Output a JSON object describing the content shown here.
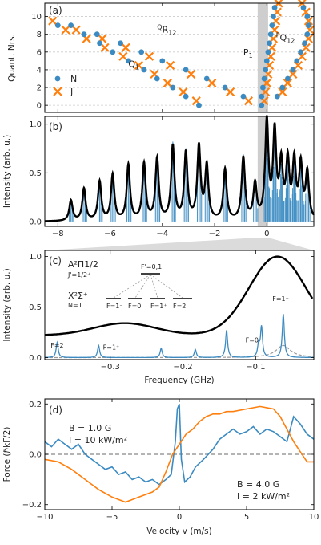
{
  "colors": {
    "blue": "#3b8bc2",
    "orange": "#ff7f0e",
    "black": "#000000",
    "gray": "#999999",
    "band": "#bdbdbd"
  },
  "chart_data": [
    {
      "panel": "(a)",
      "type": "scatter",
      "ylabel": "Quant. Nrs.",
      "xlim": [
        -8.5,
        1.8
      ],
      "ylim": [
        -0.8,
        11.5
      ],
      "yticks": [
        "0",
        "2",
        "4",
        "6",
        "8",
        "10"
      ],
      "legend_placement": "bottom-left",
      "series": [
        {
          "name": "N",
          "marker": "dot",
          "points": [
            [
              -8.0,
              9
            ],
            [
              -7.0,
              8
            ],
            [
              -6.4,
              7
            ],
            [
              -5.9,
              6
            ],
            [
              -5.3,
              5
            ],
            [
              -4.7,
              4
            ],
            [
              -4.2,
              3
            ],
            [
              -3.6,
              2
            ],
            [
              -3.1,
              1
            ],
            [
              -2.6,
              0
            ],
            [
              -7.5,
              9
            ],
            [
              -6.5,
              8
            ],
            [
              -5.6,
              7
            ],
            [
              -4.8,
              6
            ],
            [
              -4.0,
              5
            ],
            [
              -3.1,
              4
            ],
            [
              -2.3,
              3
            ],
            [
              -1.6,
              2
            ],
            [
              -0.9,
              1
            ],
            [
              -0.2,
              0
            ],
            [
              -0.2,
              1
            ],
            [
              -0.15,
              2
            ],
            [
              -0.1,
              3
            ],
            [
              -0.05,
              4
            ],
            [
              0.0,
              5
            ],
            [
              0.05,
              6
            ],
            [
              0.1,
              7
            ],
            [
              0.15,
              8
            ],
            [
              0.2,
              9
            ],
            [
              0.25,
              10
            ],
            [
              0.3,
              11
            ],
            [
              0.4,
              1
            ],
            [
              0.6,
              2
            ],
            [
              0.8,
              3
            ],
            [
              1.0,
              4
            ],
            [
              1.15,
              5
            ],
            [
              1.3,
              6
            ],
            [
              1.45,
              7
            ],
            [
              1.55,
              8
            ],
            [
              1.6,
              9
            ],
            [
              1.55,
              10
            ],
            [
              1.4,
              11
            ]
          ]
        },
        {
          "name": "J",
          "marker": "cross",
          "points": [
            [
              -8.2,
              9.5
            ],
            [
              -7.7,
              8.5
            ],
            [
              -6.9,
              7.5
            ],
            [
              -6.2,
              6.5
            ],
            [
              -5.5,
              5.5
            ],
            [
              -4.9,
              4.5
            ],
            [
              -4.3,
              3.5
            ],
            [
              -3.8,
              2.5
            ],
            [
              -3.2,
              1.5
            ],
            [
              -2.7,
              0.5
            ],
            [
              -7.3,
              8.5
            ],
            [
              -6.3,
              7.5
            ],
            [
              -5.4,
              6.5
            ],
            [
              -4.5,
              5.5
            ],
            [
              -3.7,
              4.5
            ],
            [
              -2.9,
              3.5
            ],
            [
              -2.1,
              2.5
            ],
            [
              -1.4,
              1.5
            ],
            [
              -0.7,
              0.5
            ],
            [
              -0.1,
              0.5
            ],
            [
              -0.05,
              1.5
            ],
            [
              0.0,
              2.5
            ],
            [
              0.05,
              3.5
            ],
            [
              0.1,
              4.5
            ],
            [
              0.15,
              5.5
            ],
            [
              0.2,
              6.5
            ],
            [
              0.25,
              7.5
            ],
            [
              0.3,
              8.5
            ],
            [
              0.35,
              9.5
            ],
            [
              0.4,
              10.5
            ],
            [
              0.45,
              11.5
            ],
            [
              0.6,
              1.5
            ],
            [
              0.8,
              2.5
            ],
            [
              1.0,
              3.5
            ],
            [
              1.2,
              4.5
            ],
            [
              1.35,
              5.5
            ],
            [
              1.5,
              6.5
            ],
            [
              1.6,
              7.5
            ],
            [
              1.65,
              8.5
            ],
            [
              1.6,
              9.5
            ],
            [
              1.5,
              10.5
            ],
            [
              1.35,
              11.5
            ]
          ]
        }
      ],
      "branch_labels": [
        {
          "text": "^{Q}R_{12}",
          "main": "R",
          "sub": "12",
          "pre": "Q",
          "x": -4.2,
          "y": 8.2
        },
        {
          "text": "Q_1",
          "main": "Q",
          "sub": "1",
          "pre": "",
          "x": -5.3,
          "y": 4.3
        },
        {
          "text": "P_1",
          "main": "P",
          "sub": "1",
          "pre": "",
          "x": -0.9,
          "y": 5.6
        },
        {
          "text": "^{P}Q_{12}",
          "main": "Q",
          "sub": "12",
          "pre": "P",
          "x": 0.35,
          "y": 7.3
        }
      ]
    },
    {
      "panel": "(b)",
      "type": "line",
      "ylabel": "Intensity (arb. u.)",
      "xlim": [
        -8.5,
        1.8
      ],
      "ylim": [
        -0.05,
        1.08
      ],
      "xticks": [
        "−8",
        "−6",
        "−4",
        "−2",
        "0"
      ],
      "yticks": [
        "0.0",
        "0.5",
        "1.0"
      ],
      "highlight_band": [
        -0.35,
        0.05
      ],
      "peaks": [
        [
          -7.5,
          0.21
        ],
        [
          -7.0,
          0.33
        ],
        [
          -6.4,
          0.4
        ],
        [
          -5.9,
          0.47
        ],
        [
          -5.3,
          0.57
        ],
        [
          -4.7,
          0.58
        ],
        [
          -4.2,
          0.63
        ],
        [
          -3.6,
          0.76
        ],
        [
          -3.1,
          0.69
        ],
        [
          -2.6,
          0.75
        ],
        [
          -2.3,
          0.55
        ],
        [
          -1.6,
          0.52
        ],
        [
          -0.9,
          0.64
        ],
        [
          -0.45,
          0.36
        ],
        [
          0.0,
          1.0
        ],
        [
          0.3,
          0.88
        ],
        [
          0.55,
          0.55
        ],
        [
          0.8,
          0.58
        ],
        [
          1.05,
          0.58
        ],
        [
          1.3,
          0.55
        ],
        [
          1.55,
          0.48
        ]
      ]
    },
    {
      "panel": "(c)",
      "type": "line",
      "xlabel": "Frequency (GHz)",
      "ylabel": "Intensity (arb. u.)",
      "xlim": [
        -0.39,
        -0.02
      ],
      "ylim": [
        -0.02,
        1.06
      ],
      "xticks": [
        "−0.3",
        "−0.2",
        "−0.1"
      ],
      "yticks": [
        "0.0",
        "0.5",
        "1.0"
      ],
      "peaks": [
        [
          -0.373,
          0.15
        ],
        [
          -0.316,
          0.12
        ],
        [
          -0.23,
          0.09
        ],
        [
          -0.183,
          0.08
        ],
        [
          -0.14,
          0.27
        ],
        [
          -0.096,
          0.12
        ],
        [
          -0.092,
          0.3
        ],
        [
          -0.062,
          0.43
        ]
      ],
      "peak_labels": [
        "F=2",
        "F=1⁺",
        "F=0",
        "F=1⁻"
      ],
      "level_diagram": {
        "upper_state": "A²Π1/2",
        "upper_sub": "J'=1/2⁺",
        "upper_level": "F'=0,1",
        "lower_state": "X²Σ⁺",
        "lower_sub": "N=1",
        "lower_levels": [
          "F=1⁻",
          "F=0",
          "F=1⁺",
          "F=2"
        ]
      }
    },
    {
      "panel": "(d)",
      "type": "line",
      "xlabel": "Velocity v (m/s)",
      "ylabel": "Force (ℏkΓ/2)",
      "xlim": [
        -10,
        10
      ],
      "ylim": [
        -0.22,
        0.22
      ],
      "xticks": [
        "−10",
        "−5",
        "0",
        "5",
        "10"
      ],
      "yticks": [
        "−0.2",
        "0.0",
        "0.2"
      ],
      "series": [
        {
          "name": "B = 1.0 G, I = 10 kW/m²",
          "label_line1": "B = 1.0 G",
          "label_line2": "I = 10 kW/m²",
          "color": "blue",
          "points": [
            [
              -10,
              0.05
            ],
            [
              -9.5,
              0.03
            ],
            [
              -9,
              0.06
            ],
            [
              -8.5,
              0.04
            ],
            [
              -8,
              0.02
            ],
            [
              -7.5,
              0.04
            ],
            [
              -7,
              0.0
            ],
            [
              -6.5,
              -0.02
            ],
            [
              -6,
              -0.04
            ],
            [
              -5.5,
              -0.06
            ],
            [
              -5,
              -0.05
            ],
            [
              -4.5,
              -0.08
            ],
            [
              -4,
              -0.07
            ],
            [
              -3.5,
              -0.1
            ],
            [
              -3,
              -0.09
            ],
            [
              -2.5,
              -0.11
            ],
            [
              -2,
              -0.1
            ],
            [
              -1.5,
              -0.12
            ],
            [
              -1,
              -0.1
            ],
            [
              -0.6,
              -0.08
            ],
            [
              -0.3,
              0.05
            ],
            [
              -0.15,
              0.18
            ],
            [
              0,
              0.2
            ],
            [
              0.15,
              -0.02
            ],
            [
              0.4,
              -0.11
            ],
            [
              0.8,
              -0.09
            ],
            [
              1.2,
              -0.05
            ],
            [
              1.8,
              -0.02
            ],
            [
              2.5,
              0.02
            ],
            [
              3,
              0.06
            ],
            [
              3.5,
              0.08
            ],
            [
              4,
              0.1
            ],
            [
              4.5,
              0.08
            ],
            [
              5,
              0.09
            ],
            [
              5.5,
              0.11
            ],
            [
              6,
              0.08
            ],
            [
              6.5,
              0.1
            ],
            [
              7,
              0.09
            ],
            [
              7.5,
              0.07
            ],
            [
              8,
              0.05
            ],
            [
              8.5,
              0.15
            ],
            [
              9,
              0.12
            ],
            [
              9.5,
              0.08
            ],
            [
              10,
              0.06
            ]
          ]
        },
        {
          "name": "B = 4.0 G, I = 2 kW/m²",
          "label_line1": "B = 4.0 G",
          "label_line2": "I = 2 kW/m²",
          "color": "orange",
          "points": [
            [
              -10,
              -0.02
            ],
            [
              -9,
              -0.03
            ],
            [
              -8,
              -0.06
            ],
            [
              -7,
              -0.1
            ],
            [
              -6,
              -0.14
            ],
            [
              -5,
              -0.17
            ],
            [
              -4,
              -0.19
            ],
            [
              -3,
              -0.17
            ],
            [
              -2,
              -0.15
            ],
            [
              -1.5,
              -0.13
            ],
            [
              -1,
              -0.07
            ],
            [
              -0.5,
              0.0
            ],
            [
              0,
              0.04
            ],
            [
              0.5,
              0.08
            ],
            [
              1,
              0.1
            ],
            [
              1.5,
              0.13
            ],
            [
              2,
              0.15
            ],
            [
              2.5,
              0.16
            ],
            [
              3,
              0.16
            ],
            [
              3.5,
              0.17
            ],
            [
              4,
              0.17
            ],
            [
              5,
              0.18
            ],
            [
              6,
              0.19
            ],
            [
              7,
              0.18
            ],
            [
              7.5,
              0.15
            ],
            [
              8,
              0.1
            ],
            [
              8.5,
              0.05
            ],
            [
              9,
              0.01
            ],
            [
              9.5,
              -0.03
            ],
            [
              10,
              -0.03
            ]
          ]
        }
      ]
    }
  ]
}
